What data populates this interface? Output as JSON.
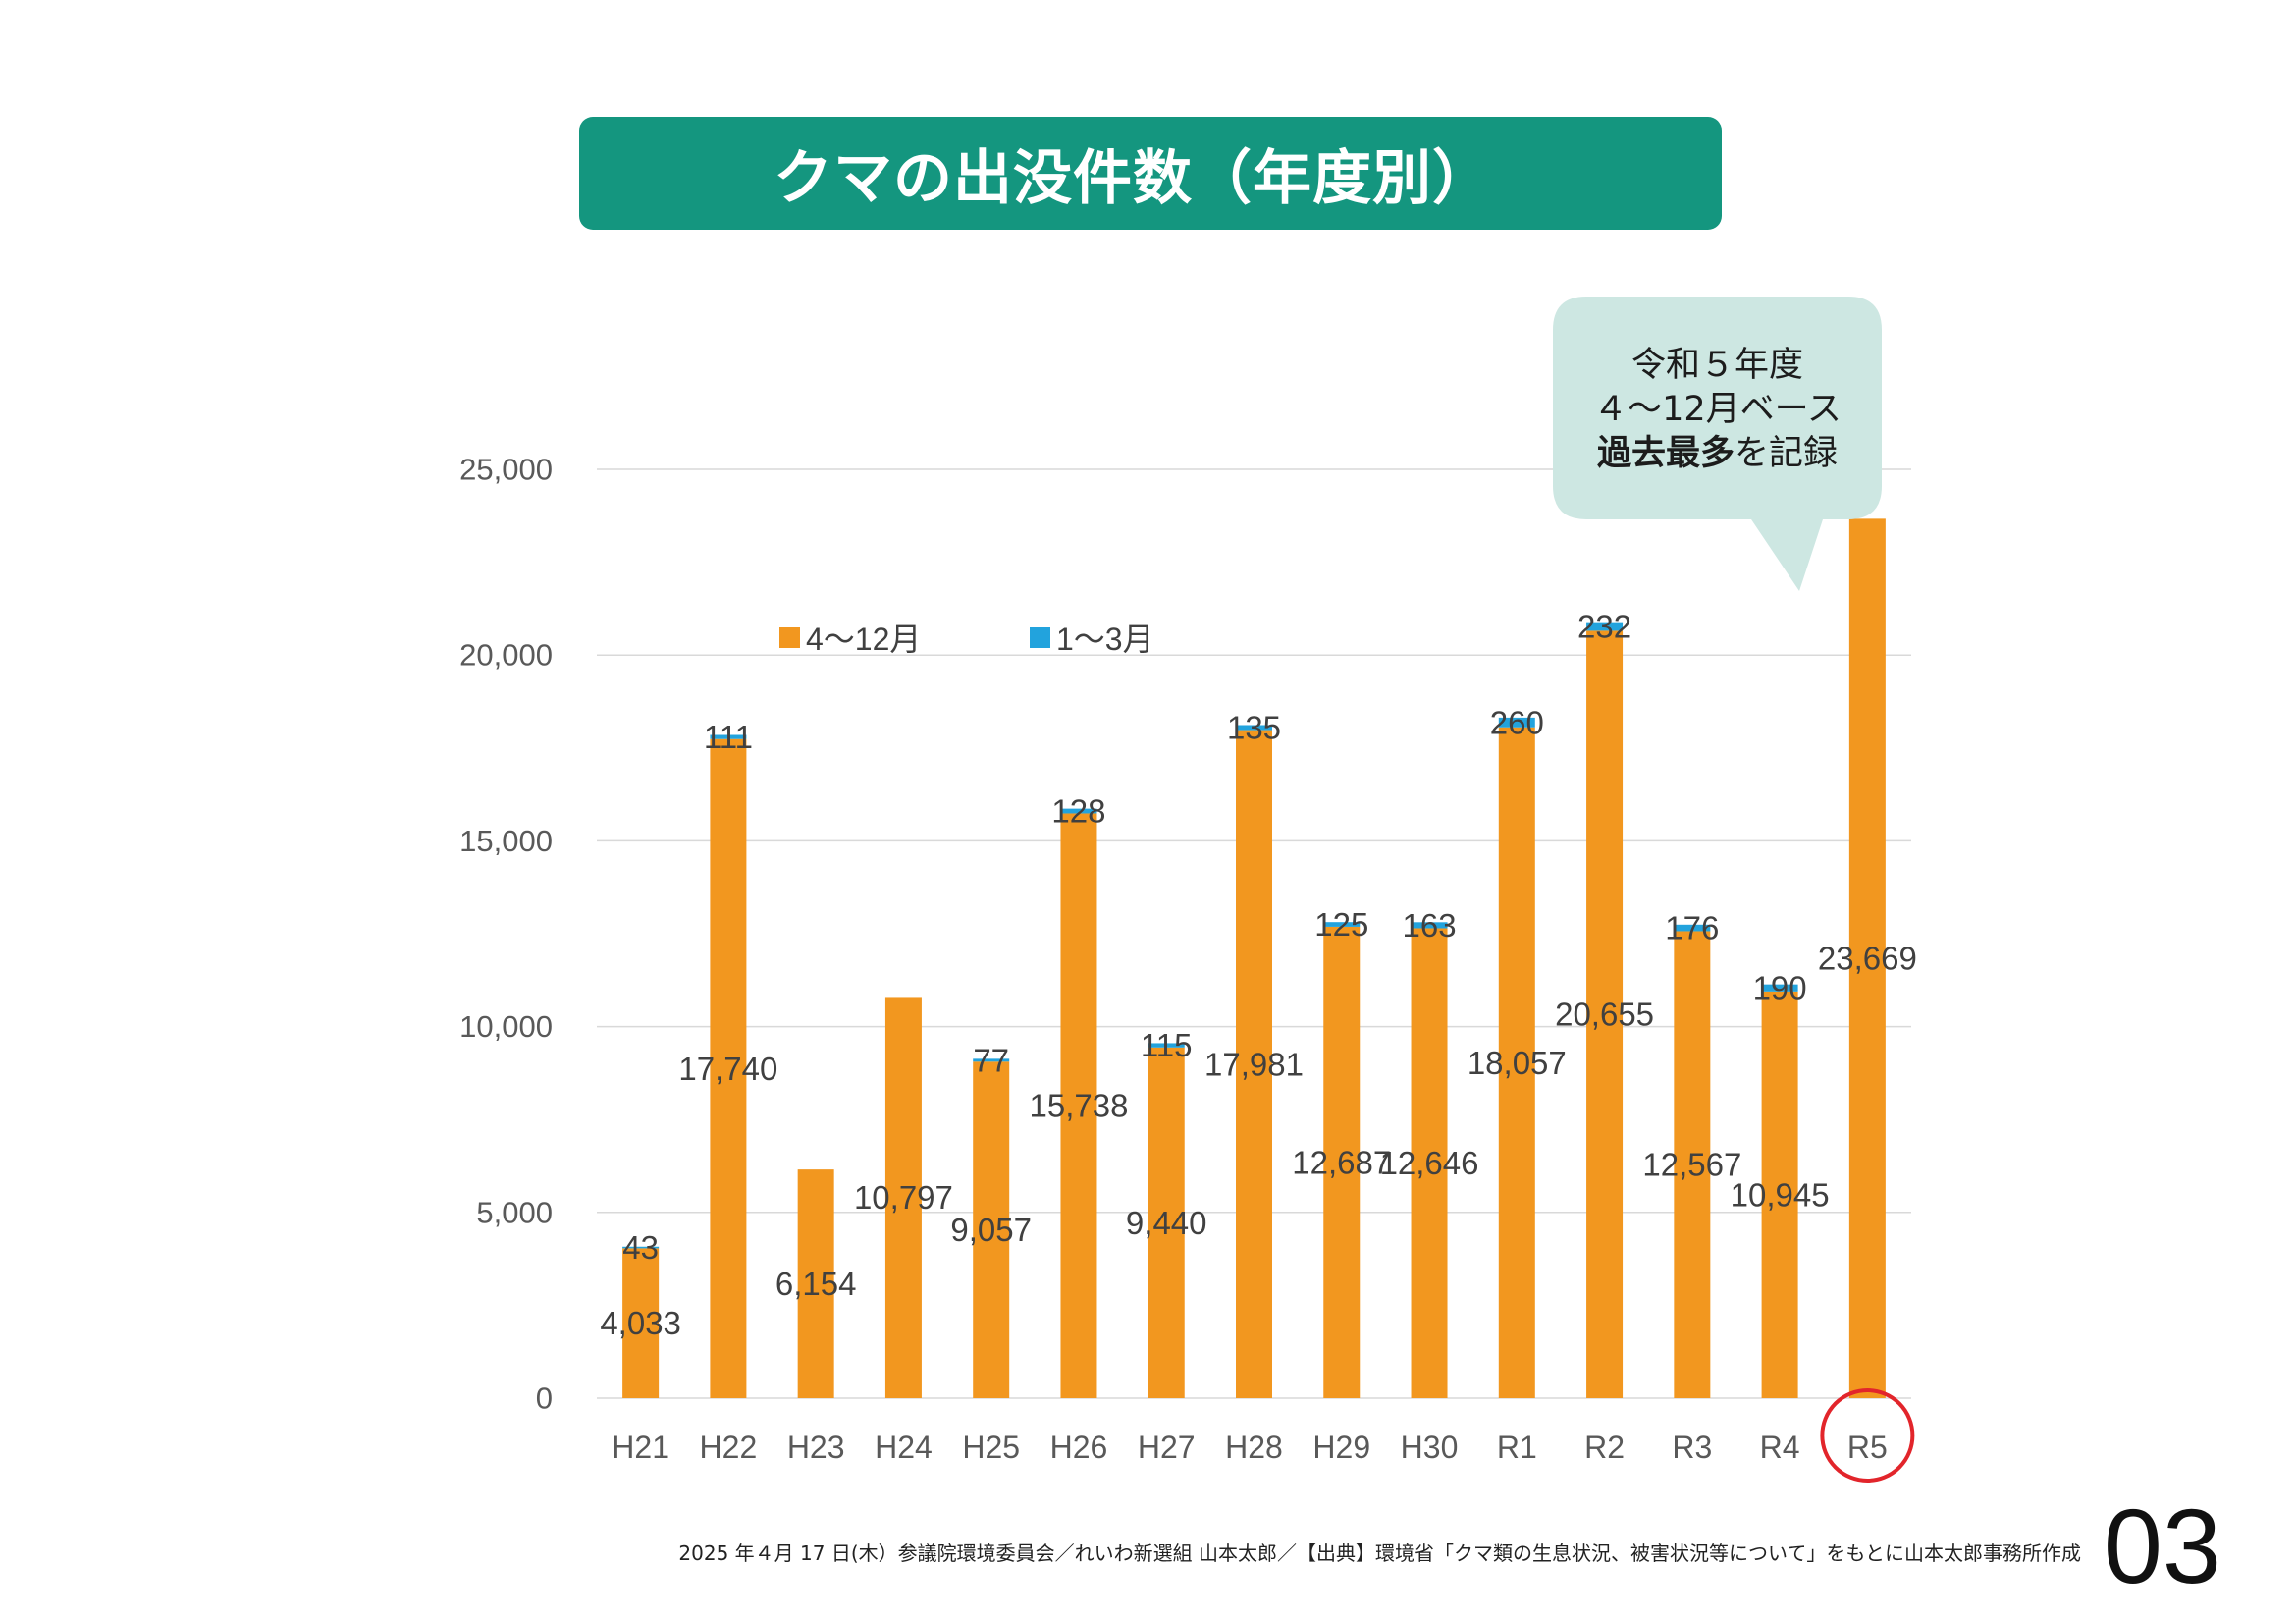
{
  "callout": {
    "line1": "令和５年度",
    "line2": "４～12月ベース",
    "line3_emphasis": "過去最多",
    "line3_rest": "を記録"
  },
  "footer": {
    "source": "2025 年４月 17 日(木）参議院環境委員会／れいわ新選組 山本太郎／【出典】環境省「クマ類の生息状況、被害状況等について」をもとに山本太郎事務所作成",
    "page_number": "03"
  },
  "colors": {
    "title_banner": "#14967f",
    "title_text": "#ffffff",
    "callout_bubble": "#cde7e2",
    "highlight": "#e2252b",
    "gridline": "#d9d9d9"
  },
  "chart_data": {
    "type": "bar",
    "stacked": true,
    "title": "クマの出没件数（年度別）",
    "categories": [
      "H21",
      "H22",
      "H23",
      "H24",
      "H25",
      "H26",
      "H27",
      "H28",
      "H29",
      "H30",
      "R1",
      "R2",
      "R3",
      "R4",
      "R5"
    ],
    "series": [
      {
        "name": "4～12月",
        "color": "#f2971f",
        "values": [
          4033,
          17740,
          6154,
          10797,
          9057,
          15738,
          9440,
          17981,
          12687,
          12646,
          18057,
          20655,
          12567,
          10945,
          23669
        ]
      },
      {
        "name": "1～3月",
        "color": "#22a3dd",
        "values": [
          43,
          111,
          null,
          null,
          77,
          128,
          115,
          135,
          125,
          163,
          260,
          232,
          176,
          190,
          null
        ]
      }
    ],
    "yticks": [
      0,
      5000,
      10000,
      15000,
      20000,
      25000
    ],
    "ylim": [
      0,
      25000
    ],
    "grid": true,
    "legend_position": "top-left",
    "highlight": {
      "category": "R5",
      "label_color": "#e2252b",
      "circled": true
    }
  }
}
